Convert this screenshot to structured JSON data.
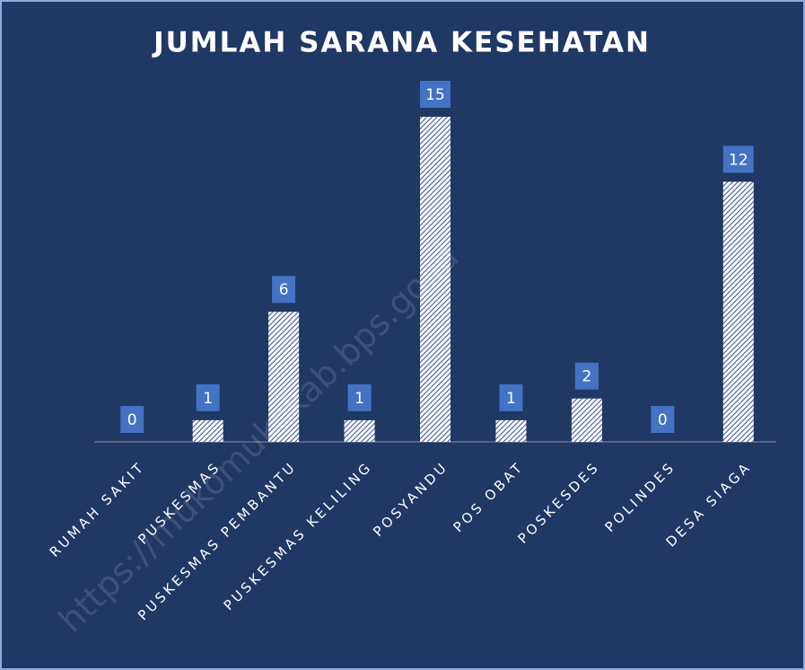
{
  "chart_data": {
    "type": "bar",
    "title": "JUMLAH SARANA KESEHATAN",
    "categories": [
      "RUMAH SAKIT",
      "PUSKESMAS",
      "PUSKESMAS PEMBANTU",
      "PUSKESMAS KELILING",
      "POSYANDU",
      "POS OBAT",
      "POSKESDES",
      "POLINDES",
      "DESA SIAGA"
    ],
    "values": [
      0,
      1,
      6,
      1,
      15,
      1,
      2,
      0,
      12
    ],
    "color": "#ffffff",
    "hatch_color": "#2f4f8f",
    "label_box_color": "#4472c4",
    "watermark": "https://mukomukokab.bps.go.id"
  }
}
